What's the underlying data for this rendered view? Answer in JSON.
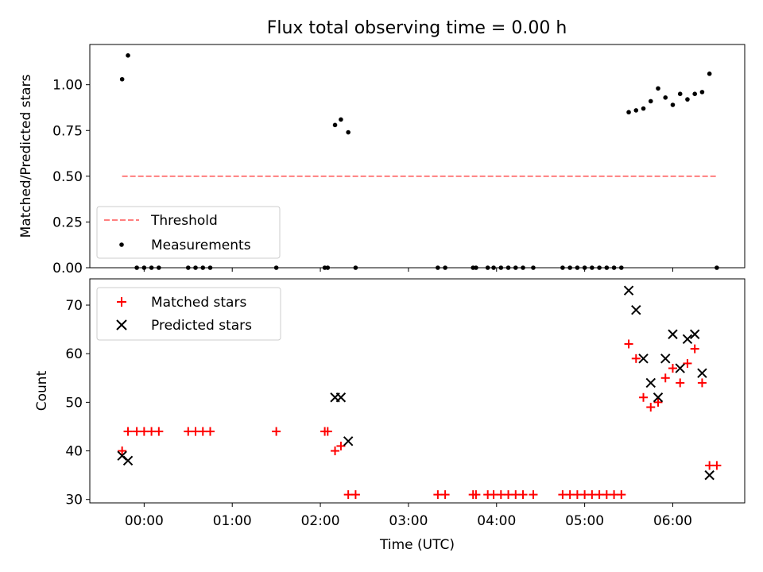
{
  "figure": {
    "title": "Flux total observing time = 0.00 h"
  },
  "chart_data": [
    {
      "type": "scatter",
      "title": "Flux total observing time = 0.00 h",
      "xlabel": "",
      "ylabel": "Matched/Predicted stars",
      "x_unit": "hours UTC",
      "xlim": [
        "23:23",
        "06:49"
      ],
      "ylim": [
        0,
        1.22
      ],
      "yticks": [
        "0.00",
        "0.25",
        "0.50",
        "0.75",
        "1.00"
      ],
      "grid": false,
      "legend_position": "lower-left",
      "legend": [
        "Threshold",
        "Measurements"
      ],
      "threshold": {
        "name": "Threshold",
        "y": 0.5,
        "x_start": "23:45",
        "x_end": "06:30",
        "color": "#ff7f7f",
        "style": "dashed"
      },
      "series": [
        {
          "name": "Measurements",
          "color": "#000000",
          "marker": "dot",
          "points": [
            {
              "x": "23:45",
              "y": 1.03
            },
            {
              "x": "23:49",
              "y": 1.16
            },
            {
              "x": "23:55",
              "y": 0
            },
            {
              "x": "00:00",
              "y": 0
            },
            {
              "x": "00:05",
              "y": 0
            },
            {
              "x": "00:10",
              "y": 0
            },
            {
              "x": "00:30",
              "y": 0
            },
            {
              "x": "00:35",
              "y": 0
            },
            {
              "x": "00:40",
              "y": 0
            },
            {
              "x": "00:45",
              "y": 0
            },
            {
              "x": "01:30",
              "y": 0
            },
            {
              "x": "02:03",
              "y": 0
            },
            {
              "x": "02:05",
              "y": 0
            },
            {
              "x": "02:10",
              "y": 0.78
            },
            {
              "x": "02:14",
              "y": 0.81
            },
            {
              "x": "02:19",
              "y": 0.74
            },
            {
              "x": "02:24",
              "y": 0
            },
            {
              "x": "03:20",
              "y": 0
            },
            {
              "x": "03:25",
              "y": 0
            },
            {
              "x": "03:44",
              "y": 0
            },
            {
              "x": "03:46",
              "y": 0
            },
            {
              "x": "03:54",
              "y": 0
            },
            {
              "x": "03:58",
              "y": 0
            },
            {
              "x": "04:03",
              "y": 0
            },
            {
              "x": "04:08",
              "y": 0
            },
            {
              "x": "04:13",
              "y": 0
            },
            {
              "x": "04:18",
              "y": 0
            },
            {
              "x": "04:25",
              "y": 0
            },
            {
              "x": "04:45",
              "y": 0
            },
            {
              "x": "04:50",
              "y": 0
            },
            {
              "x": "04:55",
              "y": 0
            },
            {
              "x": "05:00",
              "y": 0
            },
            {
              "x": "05:05",
              "y": 0
            },
            {
              "x": "05:10",
              "y": 0
            },
            {
              "x": "05:15",
              "y": 0
            },
            {
              "x": "05:20",
              "y": 0
            },
            {
              "x": "05:25",
              "y": 0
            },
            {
              "x": "05:30",
              "y": 0.85
            },
            {
              "x": "05:35",
              "y": 0.86
            },
            {
              "x": "05:40",
              "y": 0.87
            },
            {
              "x": "05:45",
              "y": 0.91
            },
            {
              "x": "05:50",
              "y": 0.98
            },
            {
              "x": "05:55",
              "y": 0.93
            },
            {
              "x": "06:00",
              "y": 0.89
            },
            {
              "x": "06:05",
              "y": 0.95
            },
            {
              "x": "06:10",
              "y": 0.92
            },
            {
              "x": "06:15",
              "y": 0.95
            },
            {
              "x": "06:20",
              "y": 0.96
            },
            {
              "x": "06:25",
              "y": 1.06
            },
            {
              "x": "06:30",
              "y": 0
            }
          ]
        }
      ]
    },
    {
      "type": "scatter",
      "title": "",
      "xlabel": "Time (UTC)",
      "ylabel": "Count",
      "x_unit": "hours UTC",
      "xlim": [
        "23:23",
        "06:49"
      ],
      "ylim": [
        29.3,
        75.4
      ],
      "xticks": [
        "00:00",
        "01:00",
        "02:00",
        "03:00",
        "04:00",
        "05:00",
        "06:00"
      ],
      "yticks": [
        "30",
        "40",
        "50",
        "60",
        "70"
      ],
      "grid": false,
      "legend_position": "upper-left",
      "legend": [
        "Matched stars",
        "Predicted stars"
      ],
      "series": [
        {
          "name": "Matched stars",
          "color": "#ff0000",
          "marker": "plus",
          "points": [
            {
              "x": "23:45",
              "y": 40
            },
            {
              "x": "23:49",
              "y": 44
            },
            {
              "x": "23:55",
              "y": 44
            },
            {
              "x": "00:00",
              "y": 44
            },
            {
              "x": "00:05",
              "y": 44
            },
            {
              "x": "00:10",
              "y": 44
            },
            {
              "x": "00:30",
              "y": 44
            },
            {
              "x": "00:35",
              "y": 44
            },
            {
              "x": "00:40",
              "y": 44
            },
            {
              "x": "00:45",
              "y": 44
            },
            {
              "x": "01:30",
              "y": 44
            },
            {
              "x": "02:03",
              "y": 44
            },
            {
              "x": "02:05",
              "y": 44
            },
            {
              "x": "02:10",
              "y": 40
            },
            {
              "x": "02:14",
              "y": 41
            },
            {
              "x": "02:19",
              "y": 31
            },
            {
              "x": "02:24",
              "y": 31
            },
            {
              "x": "03:20",
              "y": 31
            },
            {
              "x": "03:25",
              "y": 31
            },
            {
              "x": "03:44",
              "y": 31
            },
            {
              "x": "03:46",
              "y": 31
            },
            {
              "x": "03:54",
              "y": 31
            },
            {
              "x": "03:58",
              "y": 31
            },
            {
              "x": "04:03",
              "y": 31
            },
            {
              "x": "04:08",
              "y": 31
            },
            {
              "x": "04:13",
              "y": 31
            },
            {
              "x": "04:18",
              "y": 31
            },
            {
              "x": "04:25",
              "y": 31
            },
            {
              "x": "04:45",
              "y": 31
            },
            {
              "x": "04:50",
              "y": 31
            },
            {
              "x": "04:55",
              "y": 31
            },
            {
              "x": "05:00",
              "y": 31
            },
            {
              "x": "05:05",
              "y": 31
            },
            {
              "x": "05:10",
              "y": 31
            },
            {
              "x": "05:15",
              "y": 31
            },
            {
              "x": "05:20",
              "y": 31
            },
            {
              "x": "05:25",
              "y": 31
            },
            {
              "x": "05:30",
              "y": 62
            },
            {
              "x": "05:35",
              "y": 59
            },
            {
              "x": "05:40",
              "y": 51
            },
            {
              "x": "05:45",
              "y": 49
            },
            {
              "x": "05:50",
              "y": 50
            },
            {
              "x": "05:55",
              "y": 55
            },
            {
              "x": "06:00",
              "y": 57
            },
            {
              "x": "06:05",
              "y": 54
            },
            {
              "x": "06:10",
              "y": 58
            },
            {
              "x": "06:15",
              "y": 61
            },
            {
              "x": "06:20",
              "y": 54
            },
            {
              "x": "06:25",
              "y": 37
            },
            {
              "x": "06:30",
              "y": 37
            }
          ]
        },
        {
          "name": "Predicted stars",
          "color": "#000000",
          "marker": "x",
          "points": [
            {
              "x": "23:45",
              "y": 39
            },
            {
              "x": "23:49",
              "y": 38
            },
            {
              "x": "02:10",
              "y": 51
            },
            {
              "x": "02:14",
              "y": 51
            },
            {
              "x": "02:19",
              "y": 42
            },
            {
              "x": "05:30",
              "y": 73
            },
            {
              "x": "05:35",
              "y": 69
            },
            {
              "x": "05:40",
              "y": 59
            },
            {
              "x": "05:45",
              "y": 54
            },
            {
              "x": "05:50",
              "y": 51
            },
            {
              "x": "05:55",
              "y": 59
            },
            {
              "x": "06:00",
              "y": 64
            },
            {
              "x": "06:05",
              "y": 57
            },
            {
              "x": "06:10",
              "y": 63
            },
            {
              "x": "06:15",
              "y": 64
            },
            {
              "x": "06:20",
              "y": 56
            },
            {
              "x": "06:25",
              "y": 35
            }
          ]
        }
      ]
    }
  ]
}
